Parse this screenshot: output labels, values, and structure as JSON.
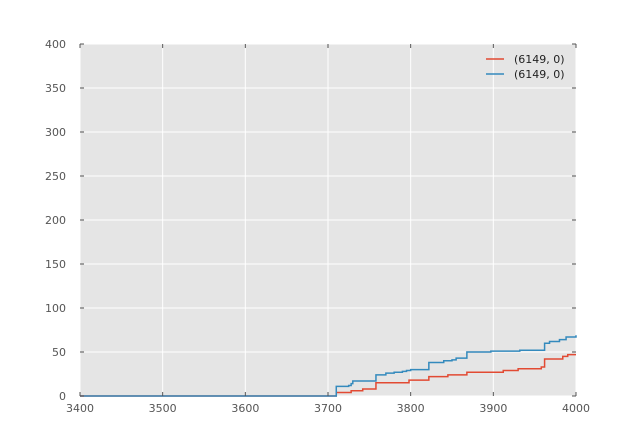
{
  "chart_data": {
    "type": "line",
    "xlim": [
      3400,
      4000
    ],
    "ylim": [
      0,
      400
    ],
    "x_ticks": [
      3400,
      3500,
      3600,
      3700,
      3800,
      3900,
      4000
    ],
    "y_ticks": [
      0,
      50,
      100,
      150,
      200,
      250,
      300,
      350,
      400
    ],
    "grid": true,
    "legend_position": "top-right",
    "title": "",
    "xlabel": "",
    "ylabel": "",
    "colors": {
      "background": "#e5e5e5",
      "grid": "#ffffff"
    },
    "series": [
      {
        "name": "(6149, 0)",
        "color": "#e24a33",
        "step": true,
        "points": [
          [
            3400,
            0
          ],
          [
            3710,
            0
          ],
          [
            3710,
            4
          ],
          [
            3725,
            4
          ],
          [
            3728,
            6
          ],
          [
            3742,
            8
          ],
          [
            3755,
            8
          ],
          [
            3758,
            15
          ],
          [
            3798,
            18
          ],
          [
            3822,
            22
          ],
          [
            3845,
            24
          ],
          [
            3868,
            27
          ],
          [
            3912,
            29
          ],
          [
            3930,
            31
          ],
          [
            3958,
            33
          ],
          [
            3962,
            42
          ],
          [
            3984,
            45
          ],
          [
            3990,
            47
          ],
          [
            4000,
            47
          ]
        ]
      },
      {
        "name": "(6149, 0)",
        "color": "#348abd",
        "step": true,
        "points": [
          [
            3400,
            0
          ],
          [
            3709,
            0
          ],
          [
            3710,
            11
          ],
          [
            3725,
            12
          ],
          [
            3728,
            14
          ],
          [
            3730,
            17
          ],
          [
            3754,
            17
          ],
          [
            3758,
            24
          ],
          [
            3770,
            26
          ],
          [
            3780,
            27
          ],
          [
            3790,
            28
          ],
          [
            3795,
            29
          ],
          [
            3800,
            30
          ],
          [
            3821,
            30
          ],
          [
            3822,
            38
          ],
          [
            3840,
            40
          ],
          [
            3850,
            41
          ],
          [
            3855,
            43
          ],
          [
            3868,
            50
          ],
          [
            3897,
            51
          ],
          [
            3932,
            52
          ],
          [
            3960,
            52
          ],
          [
            3962,
            60
          ],
          [
            3968,
            62
          ],
          [
            3980,
            64
          ],
          [
            3988,
            67
          ],
          [
            4000,
            69
          ]
        ]
      }
    ]
  }
}
